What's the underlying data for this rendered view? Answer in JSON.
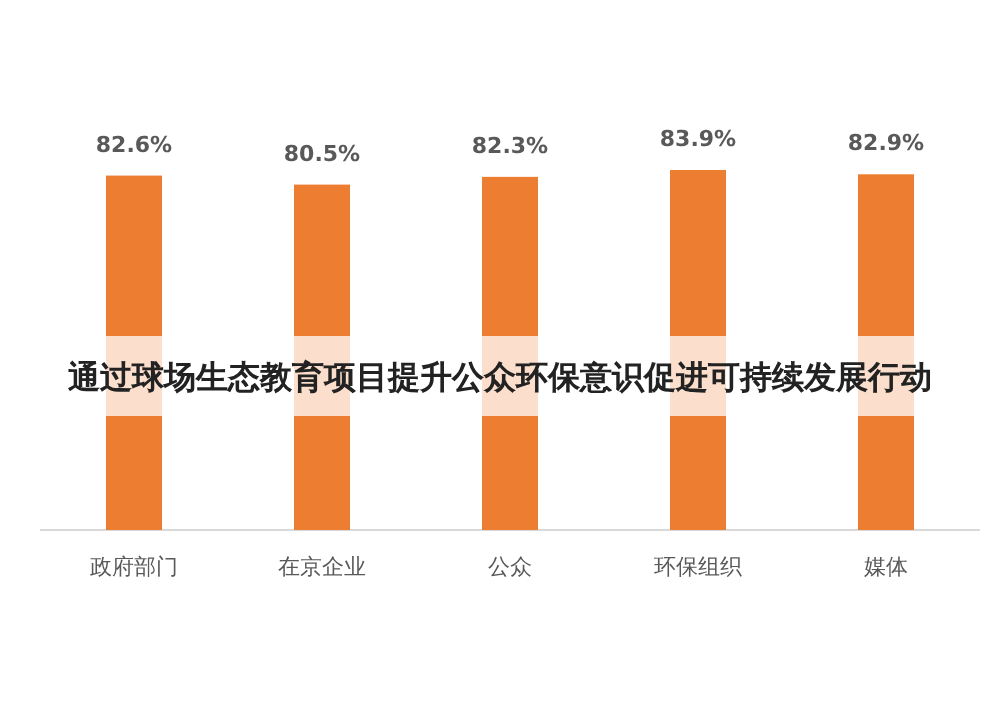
{
  "chart_data": {
    "type": "bar",
    "title": "通过球场生态教育项目提升公众环保意识促进可持续发展行动",
    "categories": [
      "政府部门",
      "在京企业",
      "公众",
      "环保组织",
      "媒体"
    ],
    "values": [
      82.6,
      80.5,
      82.3,
      83.9,
      82.9
    ],
    "value_labels": [
      "82.6%",
      "80.5%",
      "82.3%",
      "83.9%",
      "82.9%"
    ],
    "color": "#ed7d31"
  }
}
